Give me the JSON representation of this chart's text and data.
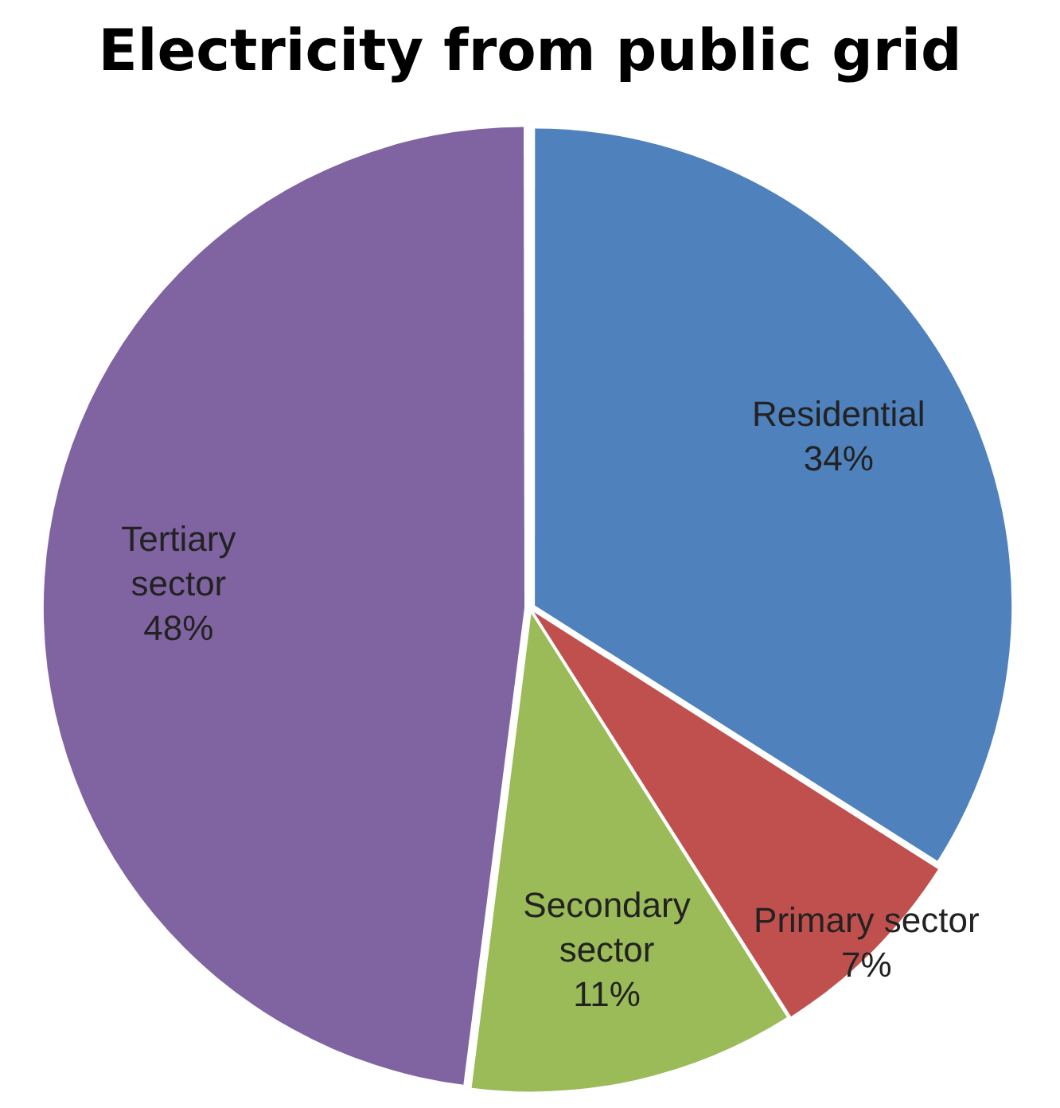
{
  "chart_data": {
    "type": "pie",
    "title": "Electricity from public grid",
    "categories": [
      "Residential",
      "Primary sector",
      "Secondary sector",
      "Tertiary sector"
    ],
    "values": [
      34,
      7,
      11,
      48
    ],
    "colors": [
      "#4f81bd",
      "#c0504d",
      "#9bbb59",
      "#8064a2"
    ],
    "value_labels": [
      "34%",
      "7%",
      "11%",
      "48%"
    ],
    "legend": false
  }
}
